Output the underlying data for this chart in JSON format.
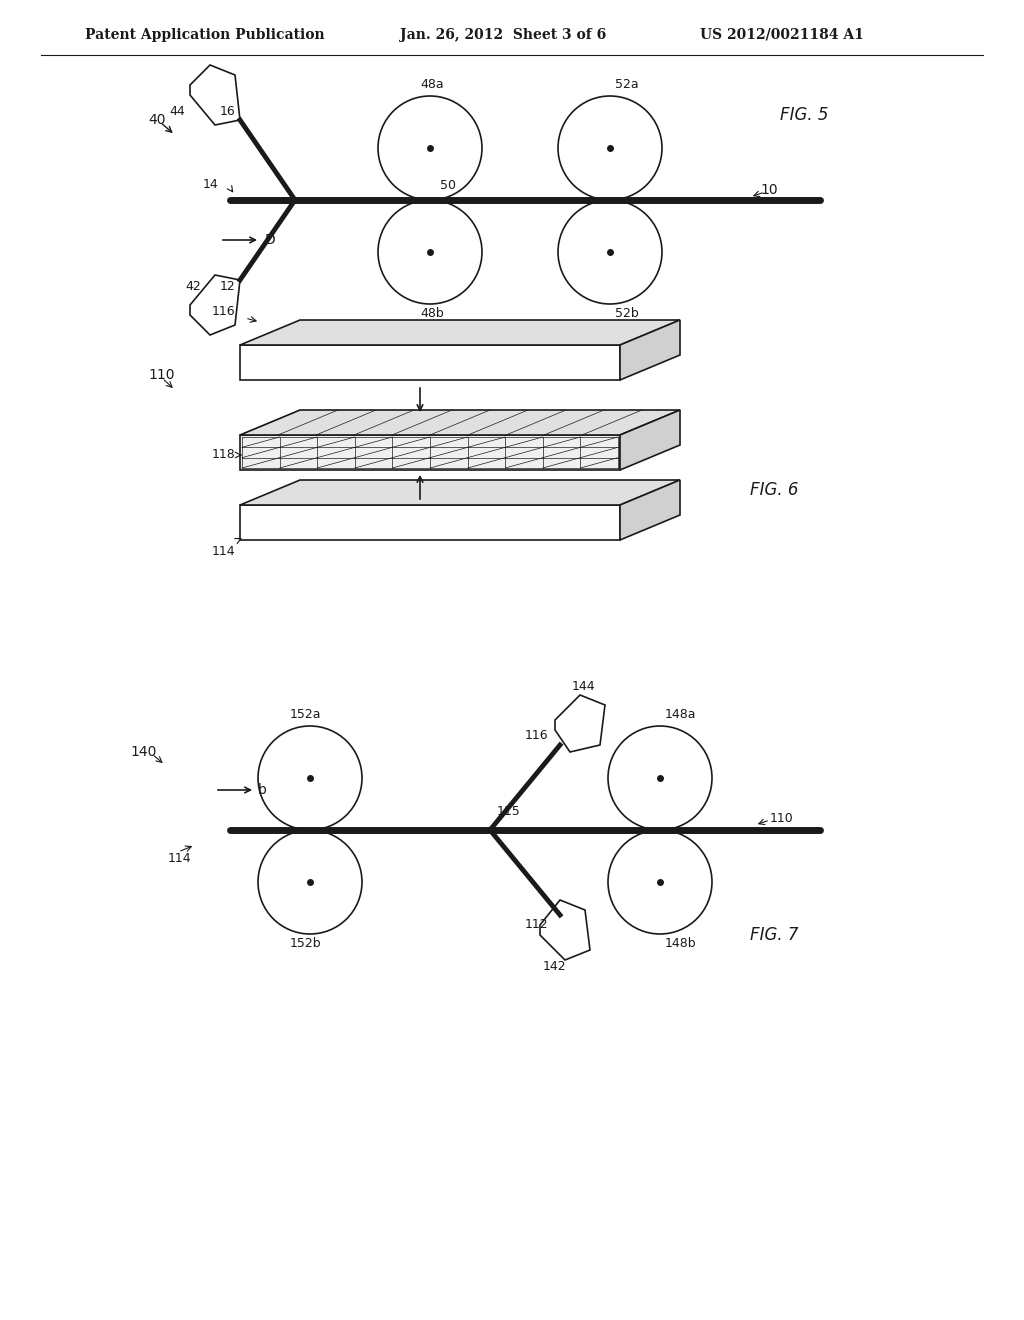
{
  "bg_color": "#ffffff",
  "header_left": "Patent Application Publication",
  "header_mid": "Jan. 26, 2012  Sheet 3 of 6",
  "header_right": "US 2012/0021184 A1",
  "fig5_label": "FIG. 5",
  "fig6_label": "FIG. 6",
  "fig7_label": "FIG. 7",
  "line_color": "#1a1a1a",
  "fill_light": "#e8e8e8",
  "fill_mid": "#cccccc"
}
